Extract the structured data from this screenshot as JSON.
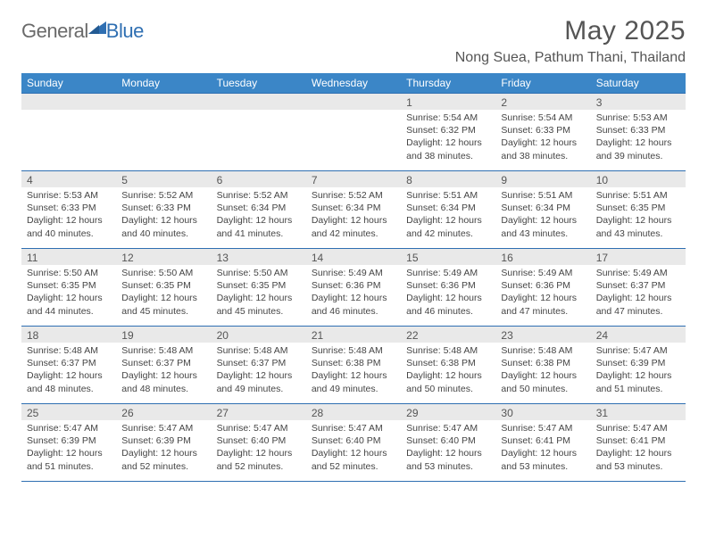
{
  "brand": {
    "general": "General",
    "blue": "Blue"
  },
  "title": "May 2025",
  "location": "Nong Suea, Pathum Thani, Thailand",
  "colors": {
    "header_bg": "#3b86c7",
    "header_text": "#ffffff",
    "border": "#2f6fb2",
    "daynum_bg": "#e9e9e9",
    "text": "#454545",
    "title_text": "#555555",
    "logo_gray": "#6a6a6a",
    "logo_blue": "#2f6fb2",
    "page_bg": "#ffffff"
  },
  "typography": {
    "title_fontsize": 30,
    "location_fontsize": 16,
    "dow_fontsize": 12,
    "daynum_fontsize": 12,
    "body_fontsize": 10.5
  },
  "layout": {
    "columns": 7,
    "cell_min_height": 86
  },
  "days_of_week": [
    "Sunday",
    "Monday",
    "Tuesday",
    "Wednesday",
    "Thursday",
    "Friday",
    "Saturday"
  ],
  "weeks": [
    [
      {
        "empty": true
      },
      {
        "empty": true
      },
      {
        "empty": true
      },
      {
        "empty": true
      },
      {
        "num": "1",
        "sunrise": "Sunrise: 5:54 AM",
        "sunset": "Sunset: 6:32 PM",
        "daylight": "Daylight: 12 hours and 38 minutes."
      },
      {
        "num": "2",
        "sunrise": "Sunrise: 5:54 AM",
        "sunset": "Sunset: 6:33 PM",
        "daylight": "Daylight: 12 hours and 38 minutes."
      },
      {
        "num": "3",
        "sunrise": "Sunrise: 5:53 AM",
        "sunset": "Sunset: 6:33 PM",
        "daylight": "Daylight: 12 hours and 39 minutes."
      }
    ],
    [
      {
        "num": "4",
        "sunrise": "Sunrise: 5:53 AM",
        "sunset": "Sunset: 6:33 PM",
        "daylight": "Daylight: 12 hours and 40 minutes."
      },
      {
        "num": "5",
        "sunrise": "Sunrise: 5:52 AM",
        "sunset": "Sunset: 6:33 PM",
        "daylight": "Daylight: 12 hours and 40 minutes."
      },
      {
        "num": "6",
        "sunrise": "Sunrise: 5:52 AM",
        "sunset": "Sunset: 6:34 PM",
        "daylight": "Daylight: 12 hours and 41 minutes."
      },
      {
        "num": "7",
        "sunrise": "Sunrise: 5:52 AM",
        "sunset": "Sunset: 6:34 PM",
        "daylight": "Daylight: 12 hours and 42 minutes."
      },
      {
        "num": "8",
        "sunrise": "Sunrise: 5:51 AM",
        "sunset": "Sunset: 6:34 PM",
        "daylight": "Daylight: 12 hours and 42 minutes."
      },
      {
        "num": "9",
        "sunrise": "Sunrise: 5:51 AM",
        "sunset": "Sunset: 6:34 PM",
        "daylight": "Daylight: 12 hours and 43 minutes."
      },
      {
        "num": "10",
        "sunrise": "Sunrise: 5:51 AM",
        "sunset": "Sunset: 6:35 PM",
        "daylight": "Daylight: 12 hours and 43 minutes."
      }
    ],
    [
      {
        "num": "11",
        "sunrise": "Sunrise: 5:50 AM",
        "sunset": "Sunset: 6:35 PM",
        "daylight": "Daylight: 12 hours and 44 minutes."
      },
      {
        "num": "12",
        "sunrise": "Sunrise: 5:50 AM",
        "sunset": "Sunset: 6:35 PM",
        "daylight": "Daylight: 12 hours and 45 minutes."
      },
      {
        "num": "13",
        "sunrise": "Sunrise: 5:50 AM",
        "sunset": "Sunset: 6:35 PM",
        "daylight": "Daylight: 12 hours and 45 minutes."
      },
      {
        "num": "14",
        "sunrise": "Sunrise: 5:49 AM",
        "sunset": "Sunset: 6:36 PM",
        "daylight": "Daylight: 12 hours and 46 minutes."
      },
      {
        "num": "15",
        "sunrise": "Sunrise: 5:49 AM",
        "sunset": "Sunset: 6:36 PM",
        "daylight": "Daylight: 12 hours and 46 minutes."
      },
      {
        "num": "16",
        "sunrise": "Sunrise: 5:49 AM",
        "sunset": "Sunset: 6:36 PM",
        "daylight": "Daylight: 12 hours and 47 minutes."
      },
      {
        "num": "17",
        "sunrise": "Sunrise: 5:49 AM",
        "sunset": "Sunset: 6:37 PM",
        "daylight": "Daylight: 12 hours and 47 minutes."
      }
    ],
    [
      {
        "num": "18",
        "sunrise": "Sunrise: 5:48 AM",
        "sunset": "Sunset: 6:37 PM",
        "daylight": "Daylight: 12 hours and 48 minutes."
      },
      {
        "num": "19",
        "sunrise": "Sunrise: 5:48 AM",
        "sunset": "Sunset: 6:37 PM",
        "daylight": "Daylight: 12 hours and 48 minutes."
      },
      {
        "num": "20",
        "sunrise": "Sunrise: 5:48 AM",
        "sunset": "Sunset: 6:37 PM",
        "daylight": "Daylight: 12 hours and 49 minutes."
      },
      {
        "num": "21",
        "sunrise": "Sunrise: 5:48 AM",
        "sunset": "Sunset: 6:38 PM",
        "daylight": "Daylight: 12 hours and 49 minutes."
      },
      {
        "num": "22",
        "sunrise": "Sunrise: 5:48 AM",
        "sunset": "Sunset: 6:38 PM",
        "daylight": "Daylight: 12 hours and 50 minutes."
      },
      {
        "num": "23",
        "sunrise": "Sunrise: 5:48 AM",
        "sunset": "Sunset: 6:38 PM",
        "daylight": "Daylight: 12 hours and 50 minutes."
      },
      {
        "num": "24",
        "sunrise": "Sunrise: 5:47 AM",
        "sunset": "Sunset: 6:39 PM",
        "daylight": "Daylight: 12 hours and 51 minutes."
      }
    ],
    [
      {
        "num": "25",
        "sunrise": "Sunrise: 5:47 AM",
        "sunset": "Sunset: 6:39 PM",
        "daylight": "Daylight: 12 hours and 51 minutes."
      },
      {
        "num": "26",
        "sunrise": "Sunrise: 5:47 AM",
        "sunset": "Sunset: 6:39 PM",
        "daylight": "Daylight: 12 hours and 52 minutes."
      },
      {
        "num": "27",
        "sunrise": "Sunrise: 5:47 AM",
        "sunset": "Sunset: 6:40 PM",
        "daylight": "Daylight: 12 hours and 52 minutes."
      },
      {
        "num": "28",
        "sunrise": "Sunrise: 5:47 AM",
        "sunset": "Sunset: 6:40 PM",
        "daylight": "Daylight: 12 hours and 52 minutes."
      },
      {
        "num": "29",
        "sunrise": "Sunrise: 5:47 AM",
        "sunset": "Sunset: 6:40 PM",
        "daylight": "Daylight: 12 hours and 53 minutes."
      },
      {
        "num": "30",
        "sunrise": "Sunrise: 5:47 AM",
        "sunset": "Sunset: 6:41 PM",
        "daylight": "Daylight: 12 hours and 53 minutes."
      },
      {
        "num": "31",
        "sunrise": "Sunrise: 5:47 AM",
        "sunset": "Sunset: 6:41 PM",
        "daylight": "Daylight: 12 hours and 53 minutes."
      }
    ]
  ]
}
